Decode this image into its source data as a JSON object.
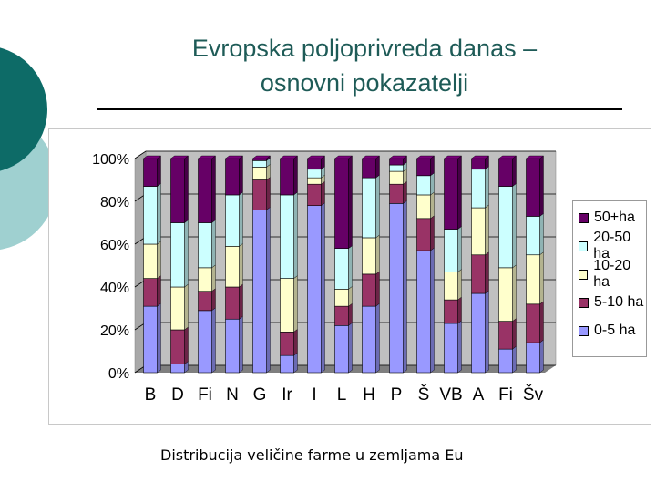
{
  "slide": {
    "title_line1": "Evropska poljoprivreda danas –",
    "title_line2": "osnovni pokazatelji",
    "caption": "Distribucija veličine farme u zemljama Eu"
  },
  "colors": {
    "title": "#1e5b57",
    "deco_dark": "#0d6b67",
    "deco_light": "#9fd0d0",
    "axis_wall": "#c0c0c0"
  },
  "chart_data": {
    "type": "bar",
    "stacked": true,
    "percent": true,
    "three_d": true,
    "categories": [
      "B",
      "D",
      "Fi",
      "N",
      "G",
      "Ir",
      "I",
      "L",
      "H",
      "P",
      "Š",
      "VB",
      "A",
      "Fi",
      "Šv"
    ],
    "ylim": [
      0,
      100
    ],
    "yticks": [
      "0%",
      "20%",
      "40%",
      "60%",
      "80%",
      "100%"
    ],
    "grid": true,
    "legend_position": "right",
    "series": [
      {
        "name": "0-5 ha",
        "color": "#9999ff",
        "values": [
          31,
          4,
          29,
          25,
          76,
          8,
          78,
          22,
          31,
          79,
          57,
          23,
          37,
          11,
          14
        ]
      },
      {
        "name": "5-10 ha",
        "color": "#993366",
        "values": [
          13,
          16,
          9,
          15,
          14,
          11,
          10,
          9,
          15,
          9,
          15,
          11,
          18,
          13,
          18
        ]
      },
      {
        "name": "10-20 ha",
        "color": "#ffffcc",
        "values": [
          16,
          20,
          11,
          19,
          6,
          25,
          3,
          8,
          17,
          6,
          11,
          13,
          22,
          25,
          23
        ]
      },
      {
        "name": "20-50 ha",
        "color": "#ccffff",
        "values": [
          27,
          30,
          21,
          24,
          3,
          39,
          4,
          19,
          28,
          3,
          9,
          20,
          18,
          38,
          18
        ]
      },
      {
        "name": "50+ha",
        "color": "#660066",
        "values": [
          13,
          30,
          30,
          17,
          1,
          17,
          5,
          42,
          9,
          3,
          8,
          33,
          5,
          13,
          27
        ]
      }
    ]
  }
}
